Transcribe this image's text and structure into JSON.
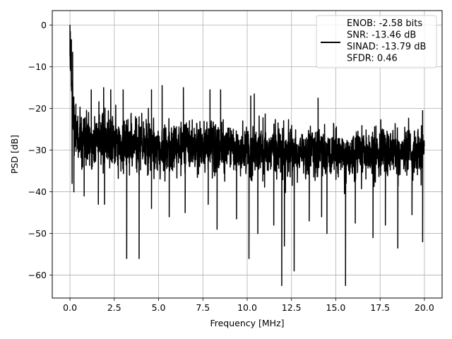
{
  "chart_data": {
    "type": "line",
    "title": "",
    "xlabel": "Frequency [MHz]",
    "ylabel": "PSD [dB]",
    "xlim": [
      -1.0,
      21.0
    ],
    "ylim": [
      -65.5,
      3.5
    ],
    "xticks": [
      0.0,
      2.5,
      5.0,
      7.5,
      10.0,
      12.5,
      15.0,
      17.5,
      20.0
    ],
    "xtick_labels": [
      "0.0",
      "2.5",
      "5.0",
      "7.5",
      "10.0",
      "12.5",
      "15.0",
      "17.5",
      "20.0"
    ],
    "yticks": [
      0,
      -10,
      -20,
      -30,
      -40,
      -50,
      -60
    ],
    "ytick_labels": [
      "0",
      "−10",
      "−20",
      "−30",
      "−40",
      "−50",
      "−60"
    ],
    "grid": true,
    "legend_position": "top-right",
    "line_color": "#000000",
    "series": [
      {
        "name": "",
        "legend_lines": [
          "ENOB: -2.58 bits",
          "SNR: -13.46 dB",
          "SINAD: -13.79 dB",
          "SFDR: 0.46"
        ],
        "envelope": {
          "x": [
            0.0,
            0.05,
            0.1,
            0.2,
            0.35,
            0.5,
            1.0,
            2.5,
            5.0,
            7.5,
            10.0,
            12.5,
            15.0,
            17.5,
            20.0
          ],
          "upper": [
            0.0,
            -2.0,
            -5.0,
            -10.0,
            -14.0,
            -16.0,
            -17.0,
            -17.5,
            -18.0,
            -19.0,
            -20.0,
            -20.5,
            -21.0,
            -21.0,
            -21.0
          ],
          "lower": [
            -14.0,
            -18.0,
            -24.0,
            -36.0,
            -40.0,
            -38.0,
            -39.0,
            -39.0,
            -40.0,
            -40.0,
            -41.0,
            -41.0,
            -41.0,
            -41.0,
            -40.0
          ]
        },
        "peaks": [
          {
            "x": 0.0,
            "y": 0.0
          },
          {
            "x": 0.02,
            "y": -1.5
          },
          {
            "x": 0.08,
            "y": -3.5
          },
          {
            "x": 0.15,
            "y": -6.5
          },
          {
            "x": 1.2,
            "y": -15.5
          },
          {
            "x": 1.9,
            "y": -15.0
          },
          {
            "x": 2.3,
            "y": -15.5
          },
          {
            "x": 3.0,
            "y": -15.5
          },
          {
            "x": 4.6,
            "y": -15.5
          },
          {
            "x": 5.2,
            "y": -14.5
          },
          {
            "x": 6.4,
            "y": -15.0
          },
          {
            "x": 7.9,
            "y": -15.5
          },
          {
            "x": 8.5,
            "y": -15.5
          },
          {
            "x": 10.2,
            "y": -17.0
          },
          {
            "x": 10.4,
            "y": -16.5
          },
          {
            "x": 14.0,
            "y": -17.5
          },
          {
            "x": 19.9,
            "y": -20.5
          }
        ],
        "dips": [
          {
            "x": 0.12,
            "y": -38.0
          },
          {
            "x": 0.22,
            "y": -40.0
          },
          {
            "x": 0.8,
            "y": -41.0
          },
          {
            "x": 1.6,
            "y": -43.0
          },
          {
            "x": 1.95,
            "y": -43.0
          },
          {
            "x": 3.2,
            "y": -56.0
          },
          {
            "x": 3.9,
            "y": -56.0
          },
          {
            "x": 4.6,
            "y": -44.0
          },
          {
            "x": 5.6,
            "y": -46.0
          },
          {
            "x": 6.5,
            "y": -45.0
          },
          {
            "x": 7.8,
            "y": -43.0
          },
          {
            "x": 8.3,
            "y": -49.0
          },
          {
            "x": 9.4,
            "y": -46.5
          },
          {
            "x": 10.1,
            "y": -56.0
          },
          {
            "x": 10.6,
            "y": -50.0
          },
          {
            "x": 11.5,
            "y": -48.0
          },
          {
            "x": 11.95,
            "y": -62.5
          },
          {
            "x": 12.1,
            "y": -53.0
          },
          {
            "x": 12.65,
            "y": -59.0
          },
          {
            "x": 13.5,
            "y": -47.0
          },
          {
            "x": 14.2,
            "y": -46.0
          },
          {
            "x": 14.5,
            "y": -50.0
          },
          {
            "x": 15.55,
            "y": -62.5
          },
          {
            "x": 16.1,
            "y": -47.5
          },
          {
            "x": 17.1,
            "y": -51.0
          },
          {
            "x": 17.8,
            "y": -48.0
          },
          {
            "x": 18.5,
            "y": -53.5
          },
          {
            "x": 19.3,
            "y": -45.5
          },
          {
            "x": 19.9,
            "y": -52.0
          }
        ]
      }
    ]
  }
}
